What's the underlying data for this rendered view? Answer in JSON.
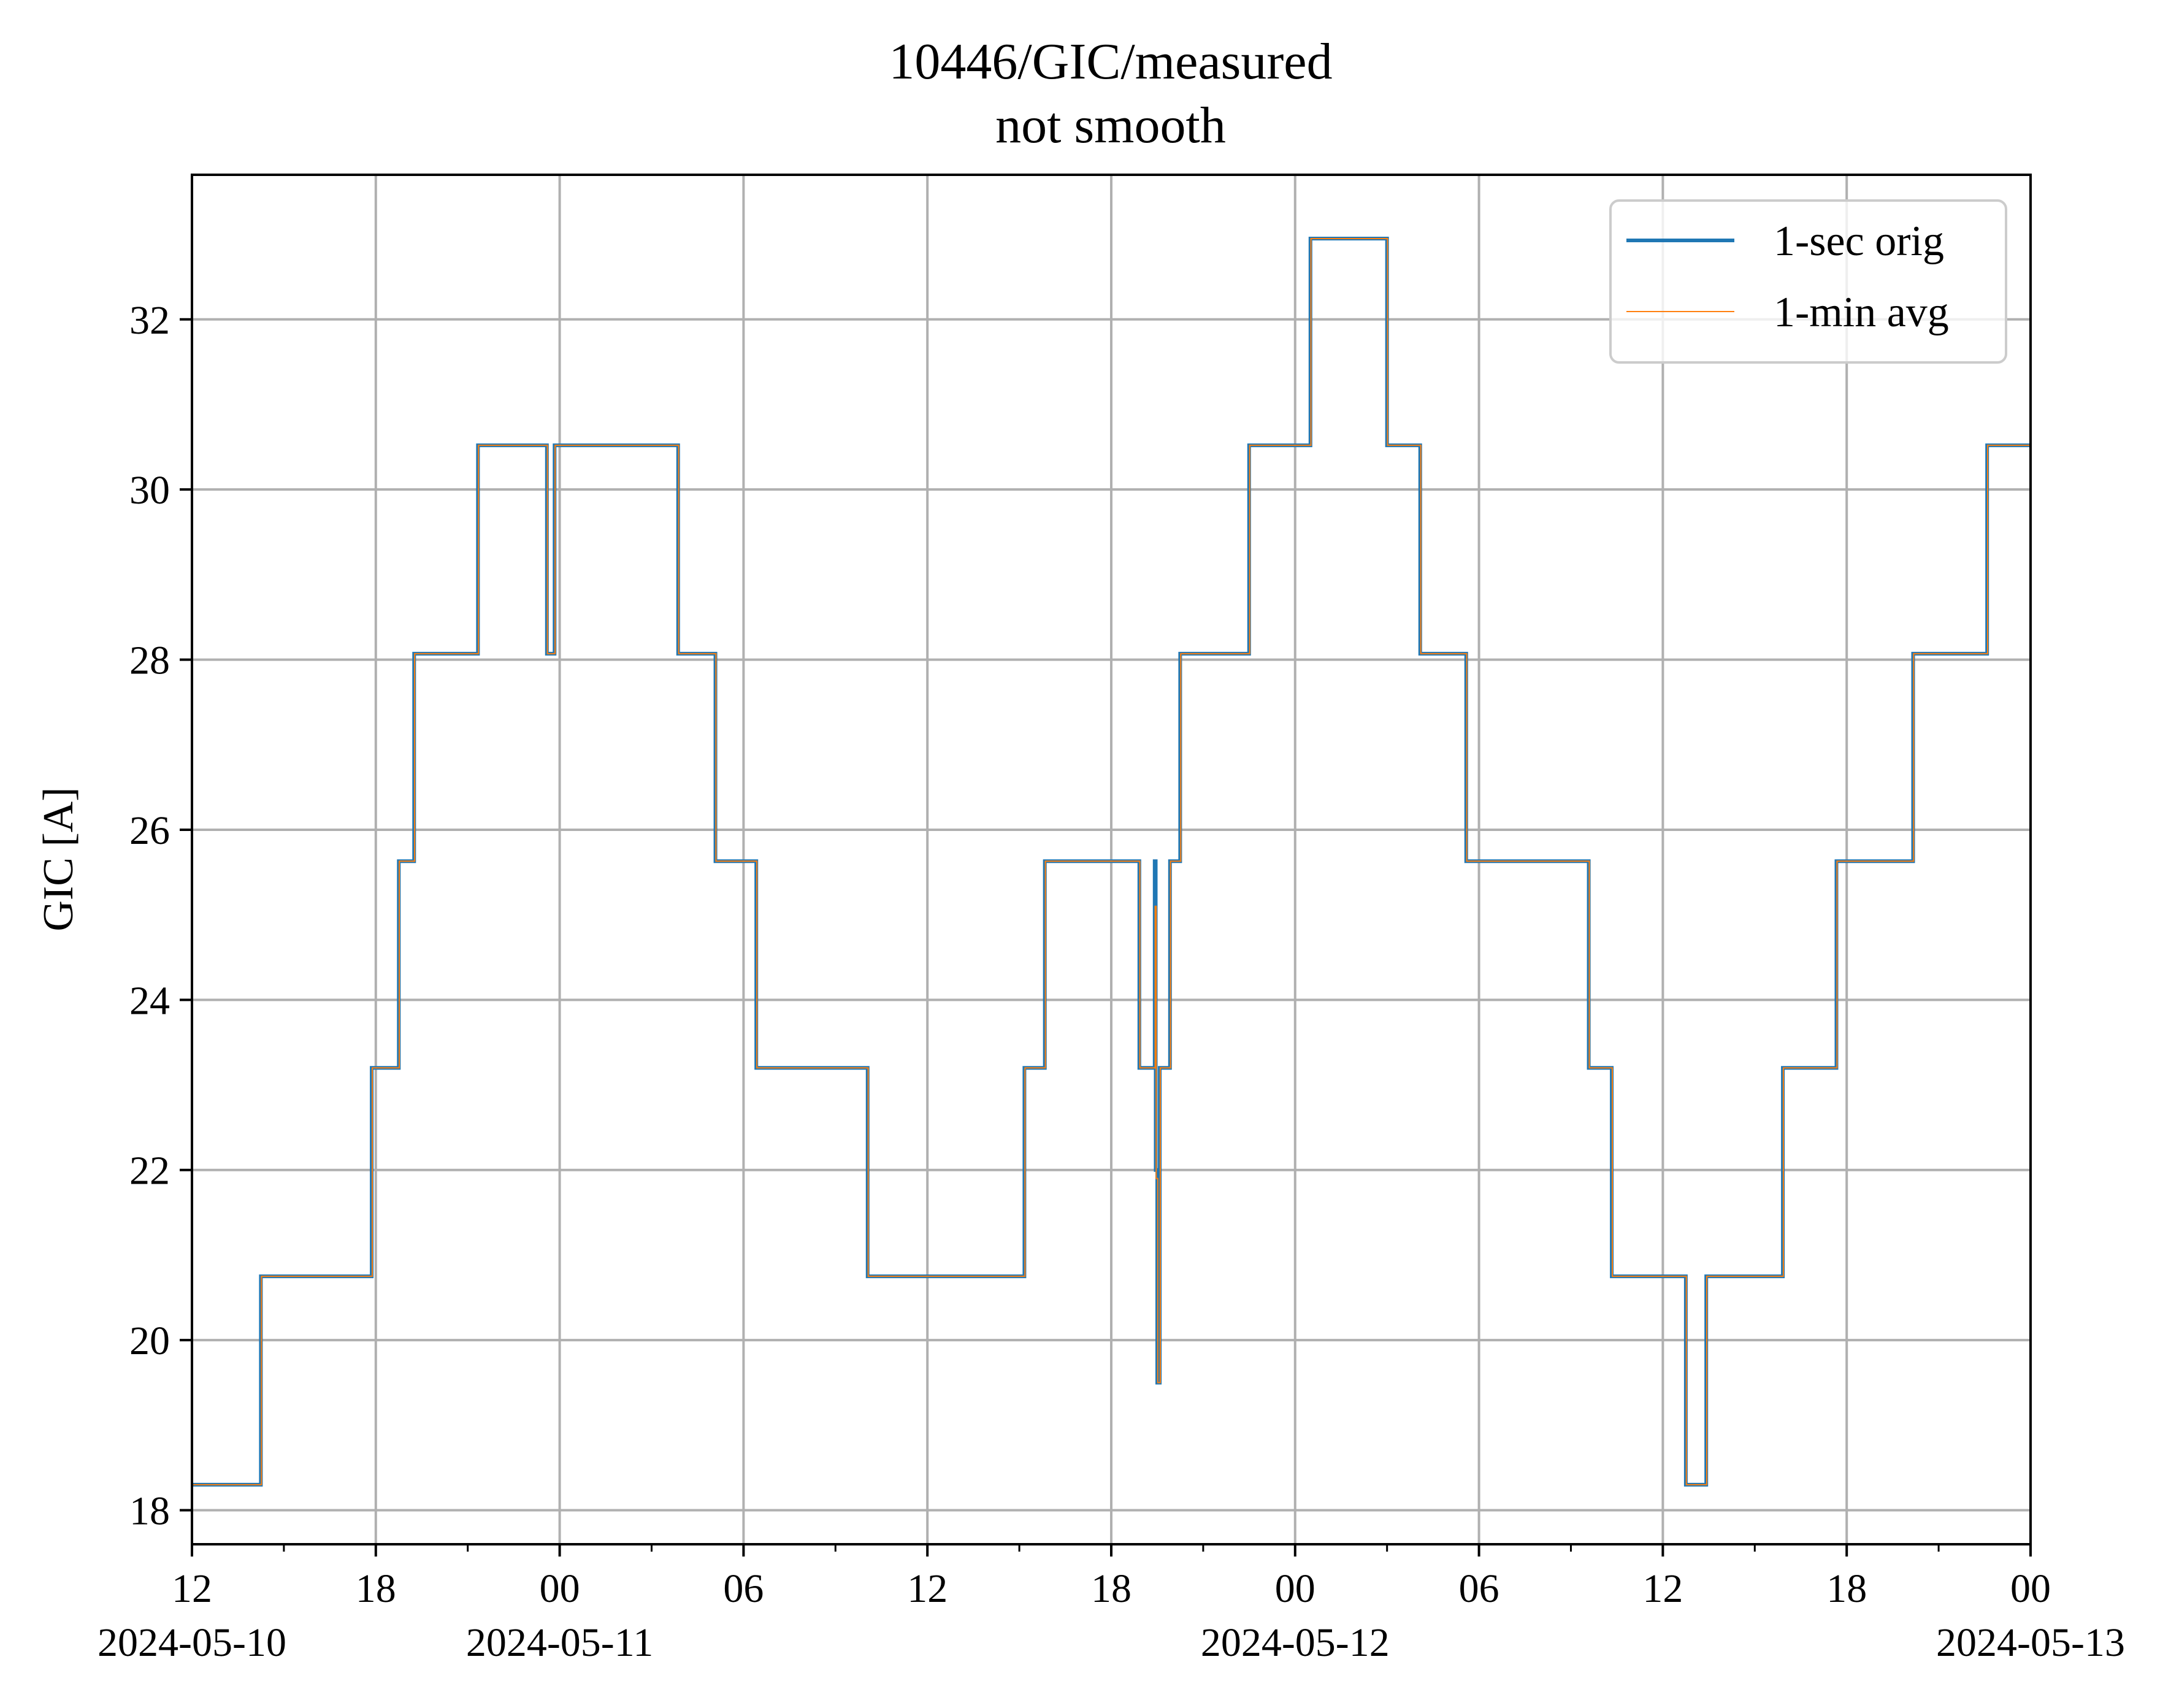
{
  "chart_data": {
    "type": "line",
    "title": "10446/GIC/measured",
    "subtitle": "not smooth",
    "xlabel": "",
    "ylabel": "GIC [A]",
    "xlim": [
      "2024-05-10T12:00",
      "2024-05-13T00:00"
    ],
    "ylim": [
      17.6,
      33.7
    ],
    "grid": true,
    "legend": {
      "location": "top-right",
      "entries": [
        "1-sec orig",
        "1-min avg"
      ]
    },
    "x_ticks": [
      {
        "x": "2024-05-10T12:00",
        "label": "12",
        "sublabel": "2024-05-10"
      },
      {
        "x": "2024-05-10T18:00",
        "label": "18",
        "sublabel": ""
      },
      {
        "x": "2024-05-11T00:00",
        "label": "00",
        "sublabel": "2024-05-11"
      },
      {
        "x": "2024-05-11T06:00",
        "label": "06",
        "sublabel": ""
      },
      {
        "x": "2024-05-11T12:00",
        "label": "12",
        "sublabel": ""
      },
      {
        "x": "2024-05-11T18:00",
        "label": "18",
        "sublabel": ""
      },
      {
        "x": "2024-05-12T00:00",
        "label": "00",
        "sublabel": "2024-05-12"
      },
      {
        "x": "2024-05-12T06:00",
        "label": "06",
        "sublabel": ""
      },
      {
        "x": "2024-05-12T12:00",
        "label": "12",
        "sublabel": ""
      },
      {
        "x": "2024-05-12T18:00",
        "label": "18",
        "sublabel": ""
      },
      {
        "x": "2024-05-13T00:00",
        "label": "00",
        "sublabel": "2024-05-13"
      }
    ],
    "x_minor_ticks": [
      "2024-05-10T15:00",
      "2024-05-10T21:00",
      "2024-05-11T03:00",
      "2024-05-11T09:00",
      "2024-05-11T15:00",
      "2024-05-11T21:00",
      "2024-05-12T03:00",
      "2024-05-12T09:00",
      "2024-05-12T15:00",
      "2024-05-12T21:00"
    ],
    "y_ticks": [
      18,
      20,
      22,
      24,
      26,
      28,
      30,
      32
    ],
    "series": [
      {
        "name": "1-sec orig",
        "color": "#1f77b4",
        "points": [
          [
            "2024-05-10T12:00",
            18.3
          ],
          [
            "2024-05-10T14:15",
            18.3
          ],
          [
            "2024-05-10T14:15",
            20.75
          ],
          [
            "2024-05-10T17:52",
            20.75
          ],
          [
            "2024-05-10T17:52",
            23.2
          ],
          [
            "2024-05-10T18:45",
            23.2
          ],
          [
            "2024-05-10T18:45",
            25.63
          ],
          [
            "2024-05-10T19:15",
            25.63
          ],
          [
            "2024-05-10T19:15",
            28.07
          ],
          [
            "2024-05-10T21:20",
            28.07
          ],
          [
            "2024-05-10T21:20",
            30.52
          ],
          [
            "2024-05-10T23:35",
            30.52
          ],
          [
            "2024-05-10T23:35",
            28.07
          ],
          [
            "2024-05-10T23:50",
            28.07
          ],
          [
            "2024-05-10T23:50",
            30.52
          ],
          [
            "2024-05-11T03:52",
            30.52
          ],
          [
            "2024-05-11T03:52",
            28.07
          ],
          [
            "2024-05-11T05:05",
            28.07
          ],
          [
            "2024-05-11T05:05",
            25.63
          ],
          [
            "2024-05-11T06:25",
            25.63
          ],
          [
            "2024-05-11T06:25",
            23.2
          ],
          [
            "2024-05-11T10:03",
            23.2
          ],
          [
            "2024-05-11T10:03",
            20.75
          ],
          [
            "2024-05-11T15:10",
            20.75
          ],
          [
            "2024-05-11T15:10",
            23.2
          ],
          [
            "2024-05-11T15:50",
            23.2
          ],
          [
            "2024-05-11T15:50",
            25.63
          ],
          [
            "2024-05-11T18:55",
            25.63
          ],
          [
            "2024-05-11T18:55",
            23.2
          ],
          [
            "2024-05-11T19:25",
            23.2
          ],
          [
            "2024-05-11T19:25",
            25.63
          ],
          [
            "2024-05-11T19:27",
            25.63
          ],
          [
            "2024-05-11T19:27",
            22.0
          ],
          [
            "2024-05-11T19:30",
            22.0
          ],
          [
            "2024-05-11T19:30",
            19.5
          ],
          [
            "2024-05-11T19:35",
            19.5
          ],
          [
            "2024-05-11T19:35",
            23.2
          ],
          [
            "2024-05-11T19:55",
            23.2
          ],
          [
            "2024-05-11T19:55",
            25.63
          ],
          [
            "2024-05-11T20:15",
            25.63
          ],
          [
            "2024-05-11T20:15",
            28.07
          ],
          [
            "2024-05-11T22:30",
            28.07
          ],
          [
            "2024-05-11T22:30",
            30.52
          ],
          [
            "2024-05-12T00:30",
            30.52
          ],
          [
            "2024-05-12T00:30",
            32.95
          ],
          [
            "2024-05-12T03:00",
            32.95
          ],
          [
            "2024-05-12T03:00",
            30.52
          ],
          [
            "2024-05-12T04:05",
            30.52
          ],
          [
            "2024-05-12T04:05",
            28.07
          ],
          [
            "2024-05-12T05:35",
            28.07
          ],
          [
            "2024-05-12T05:35",
            25.63
          ],
          [
            "2024-05-12T09:35",
            25.63
          ],
          [
            "2024-05-12T09:35",
            23.2
          ],
          [
            "2024-05-12T10:20",
            23.2
          ],
          [
            "2024-05-12T10:20",
            20.75
          ],
          [
            "2024-05-12T12:45",
            20.75
          ],
          [
            "2024-05-12T12:45",
            18.3
          ],
          [
            "2024-05-12T13:25",
            18.3
          ],
          [
            "2024-05-12T13:25",
            20.75
          ],
          [
            "2024-05-12T15:55",
            20.75
          ],
          [
            "2024-05-12T15:55",
            23.2
          ],
          [
            "2024-05-12T17:40",
            23.2
          ],
          [
            "2024-05-12T17:40",
            25.63
          ],
          [
            "2024-05-12T20:10",
            25.63
          ],
          [
            "2024-05-12T20:10",
            28.07
          ],
          [
            "2024-05-12T22:35",
            28.07
          ],
          [
            "2024-05-12T22:35",
            30.52
          ],
          [
            "2024-05-13T00:00",
            30.52
          ]
        ]
      },
      {
        "name": "1-min avg",
        "color": "#ff7f0e",
        "points": [
          [
            "2024-05-10T12:00",
            18.3
          ],
          [
            "2024-05-10T14:16",
            18.3
          ],
          [
            "2024-05-10T14:16",
            20.75
          ],
          [
            "2024-05-10T17:53",
            20.75
          ],
          [
            "2024-05-10T17:53",
            23.2
          ],
          [
            "2024-05-10T18:46",
            23.2
          ],
          [
            "2024-05-10T18:46",
            25.63
          ],
          [
            "2024-05-10T19:16",
            25.63
          ],
          [
            "2024-05-10T19:16",
            28.07
          ],
          [
            "2024-05-10T21:21",
            28.07
          ],
          [
            "2024-05-10T21:21",
            30.52
          ],
          [
            "2024-05-10T23:36",
            30.52
          ],
          [
            "2024-05-10T23:36",
            28.07
          ],
          [
            "2024-05-10T23:51",
            28.07
          ],
          [
            "2024-05-10T23:51",
            30.52
          ],
          [
            "2024-05-11T03:53",
            30.52
          ],
          [
            "2024-05-11T03:53",
            28.07
          ],
          [
            "2024-05-11T05:06",
            28.07
          ],
          [
            "2024-05-11T05:06",
            25.63
          ],
          [
            "2024-05-11T06:26",
            25.63
          ],
          [
            "2024-05-11T06:26",
            23.2
          ],
          [
            "2024-05-11T10:04",
            23.2
          ],
          [
            "2024-05-11T10:04",
            20.75
          ],
          [
            "2024-05-11T15:11",
            20.75
          ],
          [
            "2024-05-11T15:11",
            23.2
          ],
          [
            "2024-05-11T15:51",
            23.2
          ],
          [
            "2024-05-11T15:51",
            25.63
          ],
          [
            "2024-05-11T18:56",
            25.63
          ],
          [
            "2024-05-11T18:56",
            23.2
          ],
          [
            "2024-05-11T19:26",
            23.2
          ],
          [
            "2024-05-11T19:26",
            25.1
          ],
          [
            "2024-05-11T19:28",
            25.1
          ],
          [
            "2024-05-11T19:28",
            21.9
          ],
          [
            "2024-05-11T19:31",
            21.9
          ],
          [
            "2024-05-11T19:31",
            19.5
          ],
          [
            "2024-05-11T19:36",
            19.5
          ],
          [
            "2024-05-11T19:36",
            23.2
          ],
          [
            "2024-05-11T19:56",
            23.2
          ],
          [
            "2024-05-11T19:56",
            25.63
          ],
          [
            "2024-05-11T20:16",
            25.63
          ],
          [
            "2024-05-11T20:16",
            28.07
          ],
          [
            "2024-05-11T22:31",
            28.07
          ],
          [
            "2024-05-11T22:31",
            30.52
          ],
          [
            "2024-05-12T00:31",
            30.52
          ],
          [
            "2024-05-12T00:31",
            32.95
          ],
          [
            "2024-05-12T03:01",
            32.95
          ],
          [
            "2024-05-12T03:01",
            30.52
          ],
          [
            "2024-05-12T04:06",
            30.52
          ],
          [
            "2024-05-12T04:06",
            28.07
          ],
          [
            "2024-05-12T05:36",
            28.07
          ],
          [
            "2024-05-12T05:36",
            25.63
          ],
          [
            "2024-05-12T09:36",
            25.63
          ],
          [
            "2024-05-12T09:36",
            23.2
          ],
          [
            "2024-05-12T10:21",
            23.2
          ],
          [
            "2024-05-12T10:21",
            20.75
          ],
          [
            "2024-05-12T12:46",
            20.75
          ],
          [
            "2024-05-12T12:46",
            18.3
          ],
          [
            "2024-05-12T13:26",
            18.3
          ],
          [
            "2024-05-12T13:26",
            20.75
          ],
          [
            "2024-05-12T15:56",
            20.75
          ],
          [
            "2024-05-12T15:56",
            23.2
          ],
          [
            "2024-05-12T17:41",
            23.2
          ],
          [
            "2024-05-12T17:41",
            25.63
          ],
          [
            "2024-05-12T20:11",
            25.63
          ],
          [
            "2024-05-12T20:11",
            28.07
          ],
          [
            "2024-05-12T22:36",
            28.07
          ],
          [
            "2024-05-12T22:36",
            30.52
          ],
          [
            "2024-05-13T00:00",
            30.52
          ]
        ]
      }
    ]
  }
}
